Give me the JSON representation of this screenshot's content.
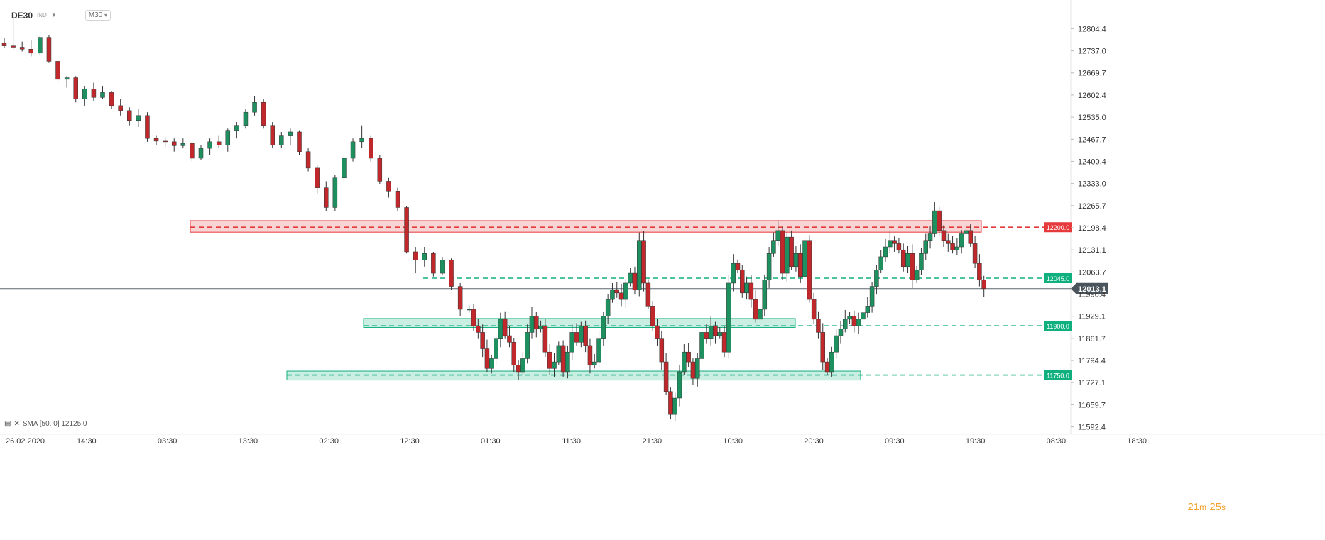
{
  "header": {
    "symbol": "DE30",
    "symbol_type": "IND",
    "timeframe": "M30"
  },
  "indicator": {
    "label": "SMA [50, 0] 12125.0"
  },
  "countdown": {
    "minutes": "21",
    "minutes_unit": "m",
    "seconds": "25",
    "seconds_unit": "s"
  },
  "colors": {
    "up": "#1e8f5e",
    "down": "#c0282c",
    "resistance": "#e5393b",
    "support": "#10b07e",
    "current": "#5c6670"
  },
  "chart_data": {
    "type": "candlestick",
    "instrument": "DE30",
    "timeframe": "M30",
    "y_axis": {
      "ticks": [
        12804.4,
        12737.0,
        12669.7,
        12602.4,
        12535.0,
        12467.7,
        12400.4,
        12333.0,
        12265.7,
        12198.4,
        12131.1,
        12063.7,
        11996.4,
        11929.1,
        11861.7,
        11794.4,
        11727.1,
        11659.7,
        11592.4
      ],
      "range": [
        11585,
        12870
      ]
    },
    "x_axis": {
      "ticks": [
        "26.02.2020",
        "14:30",
        "03:30",
        "13:30",
        "02:30",
        "12:30",
        "01:30",
        "11:30",
        "21:30",
        "10:30",
        "20:30",
        "09:30",
        "19:30",
        "08:30",
        "18:30"
      ]
    },
    "levels": [
      {
        "name": "resistance",
        "value": 12200.0,
        "label": "12200.0",
        "zone": [
          12185,
          12220
        ],
        "zone_from_index": 22,
        "zone_to_index": 116
      },
      {
        "name": "support-upper",
        "value": 12045.0,
        "label": "12045.0"
      },
      {
        "name": "support-mid",
        "value": 11900.0,
        "label": "11900.0",
        "zone": [
          11895,
          11922
        ],
        "zone_from_index": 43,
        "zone_to_index": 95
      },
      {
        "name": "support-low",
        "value": 11750.0,
        "label": "11750.0",
        "zone": [
          11735,
          11762
        ],
        "zone_from_index": 33,
        "zone_to_index": 103
      }
    ],
    "current_price": {
      "value": 12013.1,
      "label": "12013.1"
    },
    "candles": [
      [
        12760,
        12775,
        12745,
        12752
      ],
      [
        12752,
        12850,
        12740,
        12748
      ],
      [
        12748,
        12765,
        12735,
        12742
      ],
      [
        12742,
        12770,
        12720,
        12730
      ],
      [
        12730,
        12782,
        12725,
        12778
      ],
      [
        12778,
        12785,
        12700,
        12705
      ],
      [
        12705,
        12710,
        12640,
        12650
      ],
      [
        12650,
        12660,
        12625,
        12655
      ],
      [
        12655,
        12660,
        12580,
        12590
      ],
      [
        12590,
        12630,
        12570,
        12620
      ],
      [
        12620,
        12640,
        12585,
        12595
      ],
      [
        12595,
        12630,
        12590,
        12610
      ],
      [
        12610,
        12615,
        12560,
        12570
      ],
      [
        12570,
        12590,
        12540,
        12555
      ],
      [
        12555,
        12565,
        12510,
        12525
      ],
      [
        12525,
        12560,
        12505,
        12540
      ],
      [
        12540,
        12550,
        12460,
        12470
      ],
      [
        12470,
        12480,
        12450,
        12462
      ],
      [
        12462,
        12475,
        12445,
        12460
      ],
      [
        12460,
        12470,
        12430,
        12448
      ],
      [
        12448,
        12470,
        12440,
        12455
      ],
      [
        12455,
        12460,
        12400,
        12410
      ],
      [
        12410,
        12450,
        12405,
        12440
      ],
      [
        12440,
        12470,
        12420,
        12460
      ],
      [
        12460,
        12480,
        12440,
        12450
      ],
      [
        12450,
        12500,
        12430,
        12495
      ],
      [
        12495,
        12520,
        12470,
        12510
      ],
      [
        12510,
        12560,
        12500,
        12550
      ],
      [
        12550,
        12600,
        12540,
        12580
      ],
      [
        12580,
        12590,
        12500,
        12510
      ],
      [
        12510,
        12520,
        12440,
        12450
      ],
      [
        12450,
        12490,
        12440,
        12480
      ],
      [
        12480,
        12500,
        12450,
        12490
      ],
      [
        12490,
        12495,
        12420,
        12430
      ],
      [
        12430,
        12440,
        12370,
        12380
      ],
      [
        12380,
        12390,
        12300,
        12320
      ],
      [
        12320,
        12340,
        12250,
        12260
      ],
      [
        12260,
        12360,
        12250,
        12350
      ],
      [
        12350,
        12420,
        12340,
        12410
      ],
      [
        12410,
        12470,
        12400,
        12460
      ],
      [
        12460,
        12510,
        12440,
        12470
      ],
      [
        12470,
        12480,
        12400,
        12410
      ],
      [
        12410,
        12420,
        12330,
        12340
      ],
      [
        12340,
        12350,
        12290,
        12310
      ],
      [
        12310,
        12320,
        12250,
        12260
      ],
      [
        12260,
        12265,
        12120,
        12125
      ],
      [
        12125,
        12140,
        12060,
        12100
      ],
      [
        12100,
        12140,
        12080,
        12120
      ],
      [
        12120,
        12125,
        12050,
        12060
      ],
      [
        12060,
        12110,
        12055,
        12100
      ],
      [
        12100,
        12105,
        12010,
        12020
      ],
      [
        12020,
        12030,
        11930,
        11950
      ]
    ]
  }
}
